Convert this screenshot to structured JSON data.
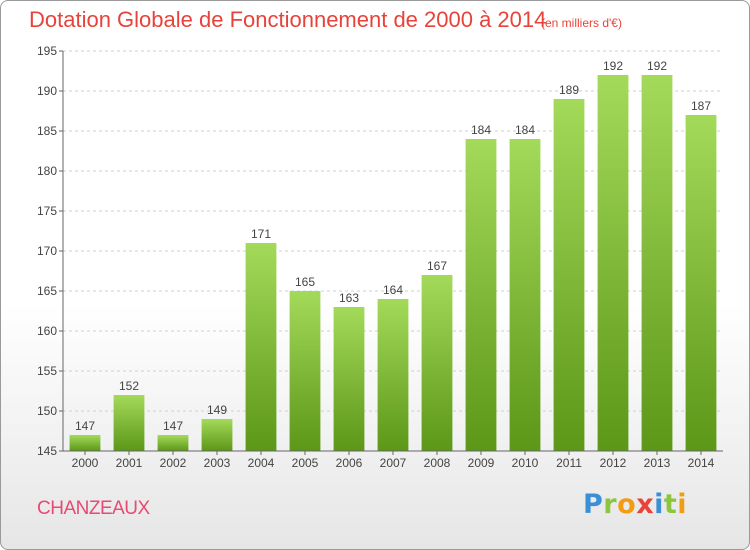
{
  "title": "Dotation Globale de Fonctionnement de 2000 à 2014",
  "unit_note": "(en milliers d'€)",
  "commune": "CHANZEAUX",
  "logo": {
    "letters": [
      "P",
      "r",
      "o",
      "x",
      "i",
      "t",
      "i"
    ],
    "colors": [
      "#3a8fd6",
      "#8cc63f",
      "#f39c12",
      "#e8433a",
      "#3a8fd6",
      "#8cc63f",
      "#f39c12"
    ]
  },
  "colors": {
    "bar_light": "#9fd656",
    "bar_dark": "#5f9a1a",
    "title": "#e8433a",
    "commune": "#e84a73",
    "grid": "#cfcfcf"
  },
  "chart_data": {
    "type": "bar",
    "categories": [
      "2000",
      "2001",
      "2002",
      "2003",
      "2004",
      "2005",
      "2006",
      "2007",
      "2008",
      "2009",
      "2010",
      "2011",
      "2012",
      "2013",
      "2014"
    ],
    "values": [
      147,
      152,
      147,
      149,
      171,
      165,
      163,
      164,
      167,
      184,
      184,
      189,
      192,
      192,
      187
    ],
    "ylim": [
      145,
      195
    ],
    "yticks": [
      145,
      150,
      155,
      160,
      165,
      170,
      175,
      180,
      185,
      190,
      195
    ],
    "grid": true,
    "data_labels": true
  }
}
